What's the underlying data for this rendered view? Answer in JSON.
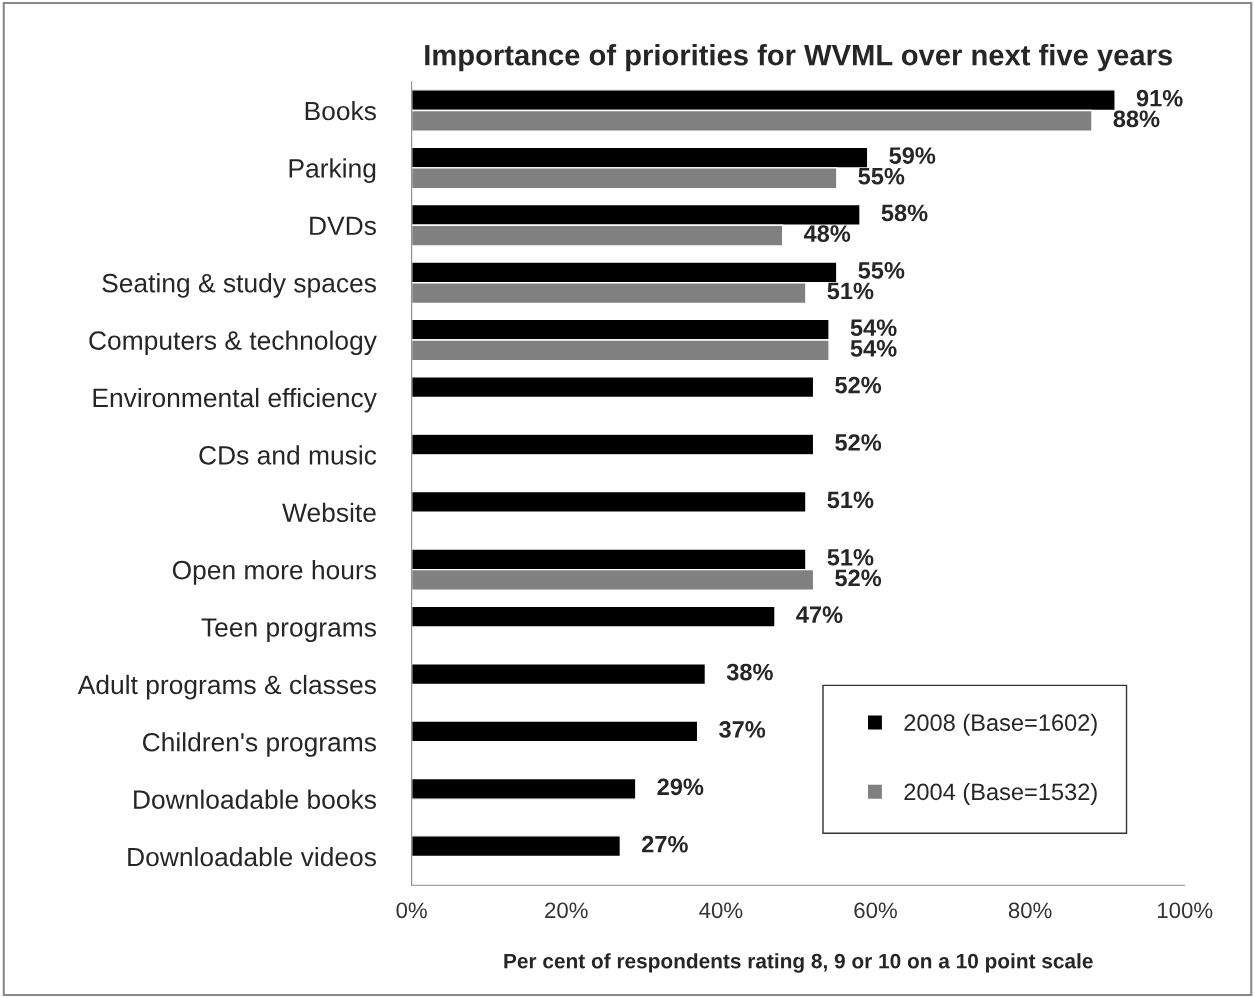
{
  "chart_data": {
    "type": "bar",
    "orientation": "horizontal",
    "title": "Importance of priorities for WVML over next five years",
    "xlabel": "Per cent of respondents rating 8, 9 or 10 on a 10 point scale",
    "categories": [
      "Books",
      "Parking",
      "DVDs",
      "Seating & study spaces",
      "Computers & technology",
      "Environmental efficiency",
      "CDs and music",
      "Website",
      "Open more hours",
      "Teen programs",
      "Adult programs & classes",
      "Children's programs",
      "Downloadable books",
      "Downloadable videos"
    ],
    "series": [
      {
        "name": "2008 (Base=1602)",
        "color": "#000000",
        "values": [
          91,
          59,
          58,
          55,
          54,
          52,
          52,
          51,
          51,
          47,
          38,
          37,
          29,
          27
        ],
        "value_labels": [
          "91%",
          "59%",
          "58%",
          "55%",
          "54%",
          "52%",
          "52%",
          "51%",
          "51%",
          "47%",
          "38%",
          "37%",
          "29%",
          "27%"
        ]
      },
      {
        "name": "2004 (Base=1532)",
        "color": "#808080",
        "values": [
          88,
          55,
          48,
          51,
          54,
          null,
          null,
          null,
          52,
          null,
          null,
          null,
          null,
          null
        ],
        "value_labels": [
          "88%",
          "55%",
          "48%",
          "51%",
          "54%",
          null,
          null,
          null,
          "52%",
          null,
          null,
          null,
          null,
          null
        ]
      }
    ],
    "xlim": [
      0,
      100
    ],
    "xticks": [
      {
        "value": 0,
        "label": "0%"
      },
      {
        "value": 20,
        "label": "20%"
      },
      {
        "value": 40,
        "label": "40%"
      },
      {
        "value": 60,
        "label": "60%"
      },
      {
        "value": 80,
        "label": "80%"
      },
      {
        "value": 100,
        "label": "100%"
      }
    ],
    "grid": false,
    "legend": "bottom right"
  }
}
